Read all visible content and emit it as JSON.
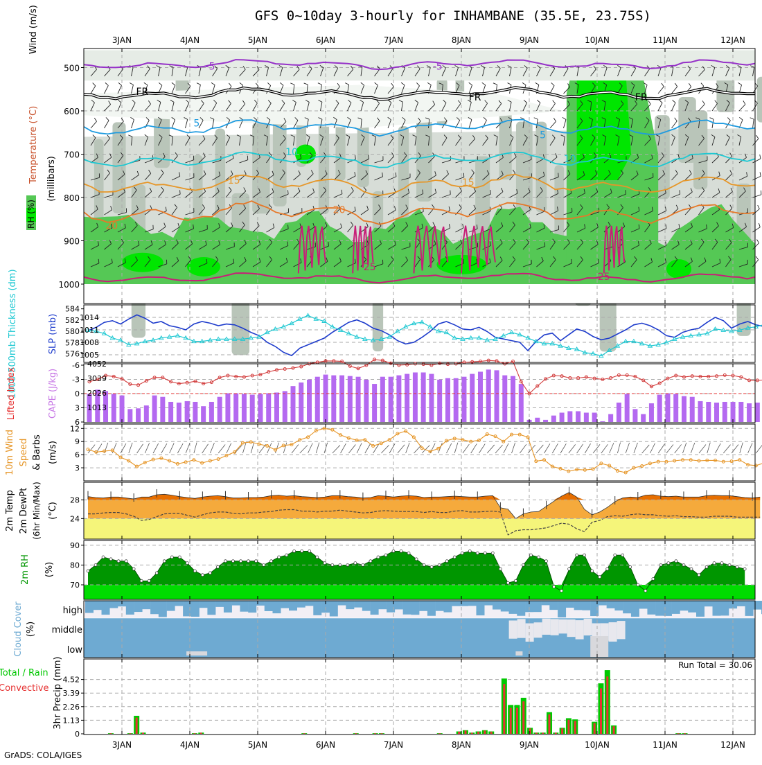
{
  "title": "GFS 0~10day 3-hourly for INHAMBANE (35.5E, 23.75S)",
  "footer": "GrADS: COLA/IGES",
  "date_labels": [
    "3JAN",
    "4JAN",
    "5JAN",
    "6JAN",
    "7JAN",
    "8JAN",
    "9JAN",
    "10JAN",
    "11JAN",
    "12JAN"
  ],
  "colors": {
    "rh_green": "#55c855",
    "rh_bright": "#00e600",
    "gray": "#c8d2c8",
    "purple": "#9632c8",
    "blue_line": "#1e3ccc",
    "cyan_line": "#1ec8d2",
    "cape_bar": "#b469f0",
    "lifted": "#d23c3c",
    "wind": "#e69628",
    "temp_dark": "#e66e00",
    "temp_mid": "#f5aa3c",
    "temp_yellow": "#f5f57a",
    "rh2m_dark": "#009600",
    "rh2m_light": "#00dc00",
    "cloud": "#6eaad2",
    "precip_total": "#00c800",
    "precip_conv": "#e63232"
  },
  "chart_data": [
    {
      "type": "contour",
      "panel": "upper-air",
      "ylabel": "(millibars)",
      "yticks": [
        "500",
        "600",
        "700",
        "800",
        "900",
        "1000"
      ],
      "side_labels": {
        "wind": "Wind (m/s)",
        "temperature": "Temperature (°C)",
        "rh": "RH (%)"
      },
      "isotherm_labels": [
        "-5",
        "FR",
        "5",
        "10",
        "15",
        "20",
        "25"
      ],
      "inline_labels": [
        {
          "text": "-5",
          "day": 1.3,
          "mb": 497
        },
        {
          "text": "-5",
          "day": 4.65,
          "mb": 497
        },
        {
          "text": "FR",
          "day": 0.3,
          "mb": 555
        },
        {
          "text": "FR",
          "day": 5.2,
          "mb": 568
        },
        {
          "text": "FR",
          "day": 7.65,
          "mb": 568
        },
        {
          "text": "5",
          "day": 1.1,
          "mb": 628
        },
        {
          "text": "5",
          "day": 6.2,
          "mb": 655
        },
        {
          "text": "10",
          "day": 2.5,
          "mb": 694
        },
        {
          "text": "10",
          "day": 6.6,
          "mb": 710
        },
        {
          "text": "15",
          "day": 1.65,
          "mb": 760
        },
        {
          "text": "15",
          "day": 5.1,
          "mb": 765
        },
        {
          "text": "20",
          "day": -0.15,
          "mb": 865
        },
        {
          "text": "20",
          "day": 3.2,
          "mb": 828
        },
        {
          "text": "25",
          "day": 3.65,
          "mb": 960
        },
        {
          "text": "25",
          "day": 7.1,
          "mb": 982
        }
      ]
    },
    {
      "type": "line",
      "panel": "thickness-slp",
      "ylabel_left": "1000-500mb Thickness (dm)",
      "ylabel_right": "SLP (mb)",
      "left_ticks": [
        "584",
        "582",
        "580",
        "578",
        "576"
      ],
      "right_ticks": [
        "1014",
        "1011",
        "1008",
        "1005"
      ],
      "series": [
        {
          "name": "SLP",
          "unit": "mb",
          "values": [
            1010.8,
            1011.6,
            1012.8,
            1013.2,
            1012.4,
            1013.6,
            1014.6,
            1013.8,
            1012.6,
            1013.0,
            1012.0,
            1011.6,
            1011.0,
            1012.4,
            1013.0,
            1012.6,
            1012.0,
            1012.4,
            1012.2,
            1011.4,
            1010.4,
            1009.6,
            1008.0,
            1007.0,
            1005.6,
            1004.8,
            1006.6,
            1007.4,
            1008.2,
            1009.0,
            1010.4,
            1011.6,
            1012.8,
            1013.4,
            1012.6,
            1011.4,
            1010.8,
            1009.8,
            1008.4,
            1007.6,
            1008.0,
            1009.2,
            1010.6,
            1012.4,
            1013.0,
            1012.2,
            1011.2,
            1011.0,
            1011.6,
            1010.6,
            1009.2,
            1008.8,
            1008.4,
            1008.0,
            1006.0,
            1008.2,
            1009.8,
            1010.2,
            1008.4,
            1009.8,
            1011.2,
            1010.6,
            1009.4,
            1008.6,
            1009.0,
            1010.0,
            1011.0,
            1012.2,
            1012.6,
            1012.0,
            1011.0,
            1009.6,
            1009.2,
            1010.4,
            1011.0,
            1011.4,
            1012.8,
            1014.0,
            1013.2,
            1011.4,
            1012.4,
            1013.0,
            1012.2,
            1011.8
          ]
        },
        {
          "name": "Thickness",
          "unit": "dm",
          "values": [
            580.2,
            580.0,
            579.6,
            578.8,
            578.4,
            577.6,
            577.8,
            578.2,
            578.4,
            578.8,
            579.0,
            579.2,
            578.8,
            578.2,
            578.2,
            578.4,
            578.6,
            578.6,
            578.6,
            578.6,
            578.8,
            579.0,
            579.8,
            580.4,
            580.8,
            581.4,
            582.2,
            582.8,
            582.2,
            581.8,
            580.8,
            580.2,
            579.6,
            579.0,
            578.6,
            578.4,
            578.6,
            579.0,
            580.0,
            580.8,
            581.4,
            581.6,
            580.8,
            580.0,
            579.8,
            578.8,
            578.6,
            578.8,
            578.8,
            578.4,
            578.6,
            579.2,
            579.8,
            579.4,
            578.8,
            578.2,
            577.8,
            577.8,
            577.4,
            577.0,
            576.8,
            576.2,
            576.0,
            575.6,
            576.6,
            577.4,
            578.2,
            578.2,
            577.8,
            577.4,
            577.6,
            578.0,
            578.6,
            579.0,
            579.2,
            579.4,
            579.6,
            580.4,
            580.2,
            580.0,
            580.2,
            580.6,
            580.8,
            581.2
          ]
        }
      ]
    },
    {
      "type": "bar",
      "panel": "cape-lifted",
      "ylabel_left": "Lifted Index",
      "ylabel_right": "CAPE (J/kg)",
      "left_ticks": [
        "-6",
        "-3",
        "0",
        "3",
        "6"
      ],
      "right_ticks": [
        "4052",
        "3039",
        "2026",
        "1013"
      ],
      "series": [
        {
          "name": "CAPE",
          "unit": "J/kg",
          "values": [
            1950,
            2250,
            2150,
            1950,
            1850,
            900,
            950,
            1150,
            1850,
            1750,
            1400,
            1350,
            1450,
            1400,
            1100,
            1400,
            1750,
            2000,
            2000,
            1950,
            1900,
            1950,
            2000,
            2050,
            2150,
            2500,
            2750,
            2950,
            3150,
            3300,
            3250,
            3250,
            3200,
            3150,
            2950,
            2650,
            3150,
            3150,
            3250,
            3350,
            3450,
            3450,
            3350,
            2950,
            3050,
            3050,
            3150,
            3350,
            3500,
            3650,
            3600,
            3250,
            3200,
            2650,
            150,
            300,
            150,
            450,
            650,
            750,
            750,
            650,
            650,
            50,
            550,
            1350,
            1950,
            900,
            550,
            1300,
            1900,
            2000,
            1950,
            1800,
            1750,
            1450,
            1400,
            1350,
            1400,
            1400,
            1400,
            1300,
            1350,
            1400
          ]
        },
        {
          "name": "Lifted Index",
          "unit": "",
          "values": [
            -2.5,
            -3.0,
            -3.8,
            -3.6,
            -3.1,
            -2.0,
            -1.8,
            -2.7,
            -3.4,
            -3.4,
            -2.5,
            -2.1,
            -2.3,
            -2.6,
            -2.1,
            -2.4,
            -3.4,
            -3.8,
            -3.6,
            -3.5,
            -3.8,
            -4.0,
            -4.6,
            -5.0,
            -5.2,
            -5.4,
            -5.7,
            -6.3,
            -6.6,
            -6.9,
            -6.9,
            -6.8,
            -5.8,
            -5.3,
            -6.0,
            -7.2,
            -7.0,
            -6.4,
            -6.0,
            -6.1,
            -6.3,
            -6.2,
            -6.0,
            -6.4,
            -6.2,
            -6.3,
            -6.6,
            -6.7,
            -6.8,
            -7.0,
            -6.9,
            -6.3,
            -6.8,
            -2.5,
            0.0,
            -1.6,
            -3.1,
            -3.8,
            -3.7,
            -3.3,
            -3.3,
            -3.5,
            -3.2,
            -3.0,
            -3.3,
            -3.9,
            -3.9,
            -3.6,
            -2.8,
            -1.5,
            -2.2,
            -3.2,
            -3.8,
            -3.5,
            -3.7,
            -3.6,
            -3.6,
            -3.7,
            -3.9,
            -3.8,
            -3.5,
            -2.8,
            -2.8,
            -2.9
          ]
        }
      ]
    },
    {
      "type": "line",
      "panel": "wind10m",
      "ylabel": "10m Wind Speed & Barbs (m/s)",
      "yticks": [
        "12",
        "9",
        "6",
        "3"
      ],
      "series": [
        {
          "name": "Wind Speed",
          "unit": "m/s",
          "values": [
            7.2,
            6.6,
            6.8,
            7.0,
            5.4,
            4.6,
            3.3,
            4.2,
            4.9,
            5.2,
            4.6,
            3.9,
            4.3,
            4.8,
            4.1,
            4.6,
            5.0,
            5.8,
            6.6,
            8.7,
            8.9,
            8.4,
            8.0,
            7.1,
            8.1,
            8.3,
            9.4,
            10.0,
            11.5,
            12.0,
            11.7,
            10.5,
            9.8,
            9.3,
            9.4,
            8.0,
            8.6,
            9.4,
            10.8,
            11.4,
            10.0,
            7.5,
            6.7,
            7.4,
            9.2,
            9.7,
            9.4,
            9.0,
            9.3,
            10.7,
            10.2,
            9.0,
            10.6,
            10.6,
            10.0,
            4.5,
            4.8,
            3.3,
            2.8,
            2.2,
            2.6,
            2.5,
            2.7,
            4.0,
            3.5,
            2.3,
            1.9,
            3.0,
            3.4,
            4.0,
            4.4,
            4.4,
            4.6,
            4.8,
            4.8,
            4.6,
            4.7,
            4.7,
            4.4,
            4.5,
            4.8,
            3.7,
            3.5,
            4.1
          ]
        }
      ]
    },
    {
      "type": "area",
      "panel": "temp2m",
      "ylabel": "2m Temp 2m DewPt (6hr Min/Max) (°C)",
      "yticks": [
        "28",
        "24"
      ],
      "series": [
        {
          "name": "2m Temp",
          "unit": "°C",
          "values": [
            28.7,
            28.5,
            28.4,
            28.6,
            28.6,
            28.4,
            28.2,
            28.6,
            28.6,
            29.1,
            29.2,
            29.0,
            28.7,
            28.5,
            28.3,
            28.6,
            28.8,
            28.9,
            28.7,
            28.4,
            28.4,
            28.5,
            28.5,
            28.6,
            28.9,
            29.0,
            28.8,
            28.9,
            28.7,
            28.6,
            28.5,
            28.6,
            28.9,
            28.9,
            28.7,
            28.6,
            28.4,
            28.5,
            28.9,
            28.8,
            28.6,
            28.8,
            28.9,
            28.8,
            28.5,
            28.6,
            28.6,
            28.7,
            28.8,
            28.7,
            28.6,
            28.6,
            28.8,
            28.9,
            26.3,
            26.0,
            24.0,
            25.0,
            25.4,
            25.5,
            26.6,
            27.7,
            28.8,
            29.6,
            28.6,
            26.0,
            24.8,
            25.4,
            26.4,
            27.6,
            28.4,
            28.6,
            28.5,
            29.0,
            29.1,
            28.8,
            28.7,
            28.8,
            28.6,
            28.6,
            28.6,
            28.9,
            29.0,
            28.9,
            28.9,
            28.7,
            28.5,
            28.4,
            28.6
          ]
        },
        {
          "name": "2m DewPt",
          "unit": "°C",
          "values": [
            25.0,
            25.0,
            25.2,
            25.3,
            25.3,
            25.0,
            24.5,
            23.6,
            23.8,
            24.4,
            25.0,
            25.1,
            25.1,
            24.7,
            24.3,
            24.8,
            25.2,
            25.4,
            25.4,
            25.1,
            25.0,
            25.2,
            25.2,
            25.4,
            25.5,
            25.8,
            25.9,
            25.9,
            25.6,
            25.6,
            25.4,
            25.6,
            25.6,
            25.8,
            25.6,
            25.4,
            25.2,
            25.3,
            25.6,
            25.7,
            25.6,
            25.5,
            25.5,
            25.5,
            25.3,
            25.5,
            25.3,
            25.3,
            25.6,
            25.7,
            25.4,
            25.4,
            25.5,
            25.6,
            25.4,
            20.5,
            21.4,
            21.6,
            21.6,
            21.8,
            22.0,
            22.5,
            23.0,
            22.8,
            21.8,
            21.2,
            23.2,
            23.6,
            24.4,
            24.6,
            24.5,
            24.8,
            25.0,
            24.8,
            24.8,
            24.6,
            24.5,
            24.6,
            24.4,
            24.4,
            24.3,
            24.3,
            24.5,
            24.5,
            24.5,
            24.3,
            24.3,
            24.3,
            24.3
          ]
        }
      ]
    },
    {
      "type": "area",
      "panel": "rh2m",
      "ylabel": "2m RH (%)",
      "yticks": [
        "90",
        "80",
        "70"
      ],
      "series": [
        {
          "name": "2m RH",
          "unit": "%",
          "values": [
            77,
            80,
            84,
            83,
            82,
            82,
            78,
            72,
            72,
            76,
            82,
            84,
            84,
            81,
            77,
            75,
            76,
            79,
            82,
            82,
            82,
            82,
            82,
            80,
            82,
            84,
            85,
            87,
            87,
            87,
            84,
            81,
            80,
            80,
            80,
            81,
            80,
            82,
            84,
            85,
            87,
            87,
            86,
            83,
            80,
            79,
            80,
            82,
            84,
            86,
            87,
            86,
            86,
            86,
            78,
            71,
            72,
            80,
            85,
            84,
            82,
            69,
            67,
            78,
            85,
            85,
            77,
            74,
            78,
            85,
            85,
            79,
            70,
            67,
            73,
            80,
            81,
            82,
            80,
            78,
            75,
            79,
            81,
            81,
            80,
            79,
            78
          ]
        }
      ]
    },
    {
      "type": "area",
      "panel": "cloud",
      "ylabel": "Cloud Cover (%)",
      "levels": [
        "high",
        "middle",
        "low"
      ]
    },
    {
      "type": "bar",
      "panel": "precip",
      "ylabel": "3hr Precip (mm)",
      "left_label_1": "Total / Rain",
      "left_label_2": "Convective",
      "yticks": [
        "4.52",
        "3.39",
        "2.26",
        "1.13",
        "0"
      ],
      "run_total_label": "Run Total = 30.06",
      "series": [
        {
          "name": "Total",
          "unit": "mm",
          "values": [
            0,
            0,
            0,
            0.05,
            0,
            0,
            0.05,
            1.5,
            0.1,
            0,
            0,
            0,
            0,
            0,
            0,
            0,
            0.05,
            0.1,
            0,
            0,
            0,
            0,
            0,
            0,
            0,
            0,
            0,
            0,
            0,
            0,
            0,
            0,
            0,
            0.05,
            0,
            0,
            0,
            0,
            0,
            0,
            0,
            0.05,
            0,
            0,
            0.05,
            0.05,
            0,
            0,
            0,
            0,
            0,
            0,
            0,
            0,
            0.05,
            0,
            0,
            0.2,
            0.3,
            0.1,
            0.2,
            0.3,
            0.2,
            0,
            4.6,
            2.4,
            2.4,
            3.0,
            0.5,
            0.1,
            0.1,
            1.8,
            0.1,
            0.5,
            1.3,
            1.2,
            0,
            0,
            1.0,
            4.2,
            5.3,
            0.7,
            0,
            0,
            0,
            0,
            0,
            0,
            0,
            0,
            0,
            0.05,
            0.05,
            0,
            0,
            0,
            0,
            0,
            0,
            0,
            0,
            0,
            0
          ]
        }
      ]
    }
  ]
}
